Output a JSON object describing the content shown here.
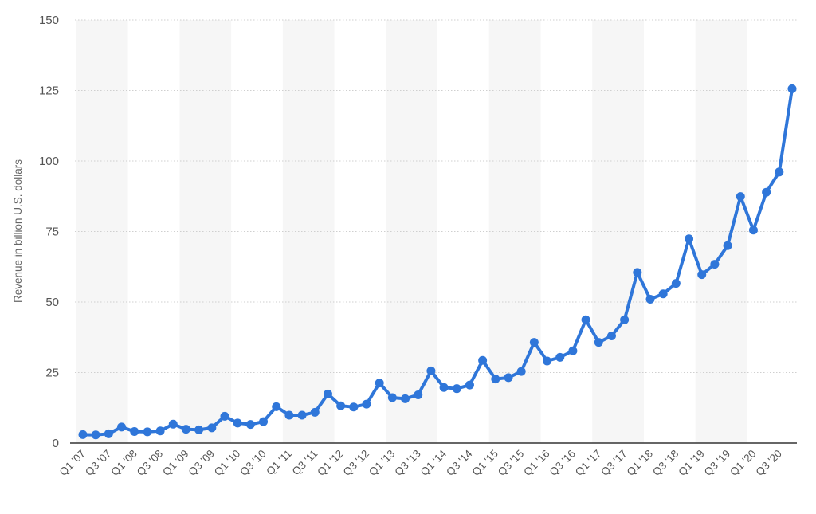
{
  "chart_data": {
    "type": "line",
    "title": "",
    "xlabel": "",
    "ylabel": "Revenue in billion U.S. dollars",
    "ylim": [
      0,
      150
    ],
    "yticks": [
      0,
      25,
      50,
      75,
      100,
      125,
      150
    ],
    "grid": true,
    "legend": "none",
    "colors": {
      "line": "#2f76d9",
      "grid": "#cfcfcf",
      "band": "#f6f6f6",
      "axis": "#333333"
    },
    "x": [
      "Q1 '07",
      "Q2 '07",
      "Q3 '07",
      "Q4 '07",
      "Q1 '08",
      "Q2 '08",
      "Q3 '08",
      "Q4 '08",
      "Q1 '09",
      "Q2 '09",
      "Q3 '09",
      "Q4 '09",
      "Q1 '10",
      "Q2 '10",
      "Q3 '10",
      "Q4 '10",
      "Q1 '11",
      "Q2 '11",
      "Q3 '11",
      "Q4 '11",
      "Q1 '12",
      "Q2 '12",
      "Q3 '12",
      "Q4 '12",
      "Q1 '13",
      "Q2 '13",
      "Q3 '13",
      "Q4 '13",
      "Q1 '14",
      "Q2 '14",
      "Q3 '14",
      "Q4 '14",
      "Q1 '15",
      "Q2 '15",
      "Q3 '15",
      "Q4 '15",
      "Q1 '16",
      "Q2 '16",
      "Q3 '16",
      "Q4 '16",
      "Q1 '17",
      "Q2 '17",
      "Q3 '17",
      "Q4 '17",
      "Q1 '18",
      "Q2 '18",
      "Q3 '18",
      "Q4 '18",
      "Q1 '19",
      "Q2 '19",
      "Q3 '19",
      "Q4 '19",
      "Q1 '20",
      "Q2 '20",
      "Q3 '20",
      "Q4 '20"
    ],
    "xtick_labels_shown": [
      "Q1 '07",
      "Q3 '07",
      "Q1 '08",
      "Q3 '08",
      "Q1 '09",
      "Q3 '09",
      "Q1 '10",
      "Q3 '10",
      "Q1 '11",
      "Q3 '11",
      "Q1 '12",
      "Q3 '12",
      "Q1 '13",
      "Q3 '13",
      "Q1 '14",
      "Q3 '14",
      "Q1 '15",
      "Q3 '15",
      "Q1 '16",
      "Q3 '16",
      "Q1 '17",
      "Q3 '17",
      "Q1 '18",
      "Q3 '18",
      "Q1 '19",
      "Q3 '19",
      "Q1 '20",
      "Q3 '20"
    ],
    "series": [
      {
        "values": [
          3.0,
          2.9,
          3.3,
          5.7,
          4.1,
          4.0,
          4.3,
          6.7,
          4.9,
          4.7,
          5.4,
          9.5,
          7.1,
          6.6,
          7.6,
          12.9,
          9.9,
          9.9,
          10.9,
          17.4,
          13.2,
          12.8,
          13.8,
          21.3,
          16.1,
          15.7,
          17.1,
          25.6,
          19.7,
          19.3,
          20.6,
          29.3,
          22.7,
          23.2,
          25.4,
          35.7,
          29.1,
          30.4,
          32.7,
          43.7,
          35.7,
          38.0,
          43.7,
          60.5,
          51.0,
          52.9,
          56.6,
          72.4,
          59.7,
          63.4,
          70.0,
          87.4,
          75.5,
          88.9,
          96.1,
          125.6
        ]
      }
    ]
  }
}
